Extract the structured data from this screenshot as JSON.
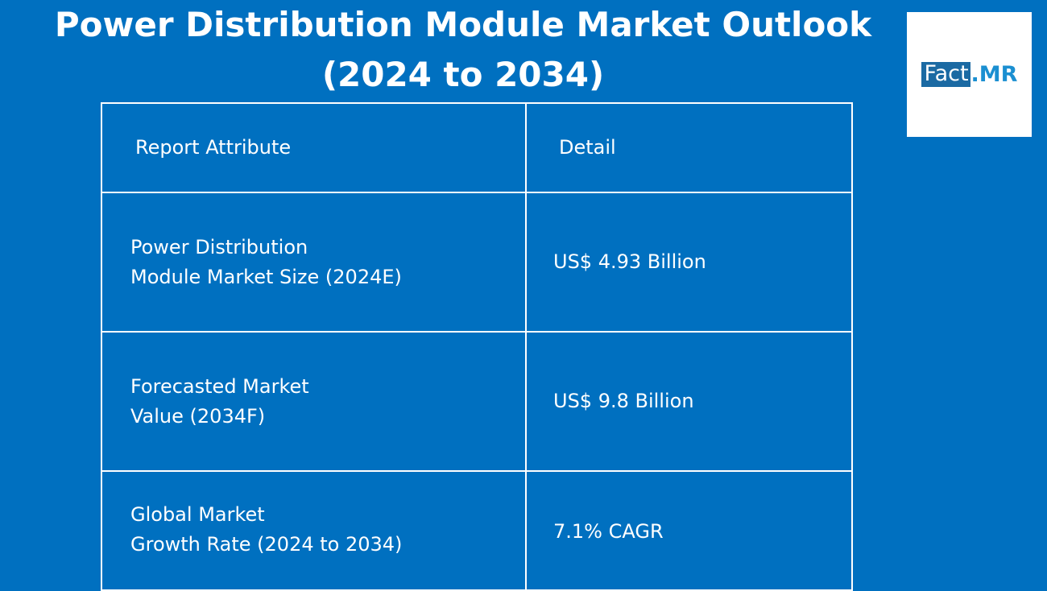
{
  "title": {
    "line1": "Power Distribution Module Market Outlook",
    "line2": "(2024 to 2034)"
  },
  "logo": {
    "fact": "Fact",
    "mr": ".MR"
  },
  "table": {
    "header": {
      "attribute": "Report Attribute",
      "detail": "Detail"
    },
    "rows": [
      {
        "attribute_line1": "Power Distribution",
        "attribute_line2": "Module Market Size (2024E)",
        "detail": "US$ 4.93 Billion"
      },
      {
        "attribute_line1": "Forecasted Market",
        "attribute_line2": "Value (2034F)",
        "detail": "US$ 9.8 Billion"
      },
      {
        "attribute_line1": "Global Market",
        "attribute_line2": "Growth Rate (2024 to 2034)",
        "detail": "7.1% CAGR"
      }
    ]
  },
  "colors": {
    "background": "#0070c0",
    "text": "#ffffff",
    "logo_fact_bg": "#1b6aa3",
    "logo_mr": "#1b8fd1"
  }
}
